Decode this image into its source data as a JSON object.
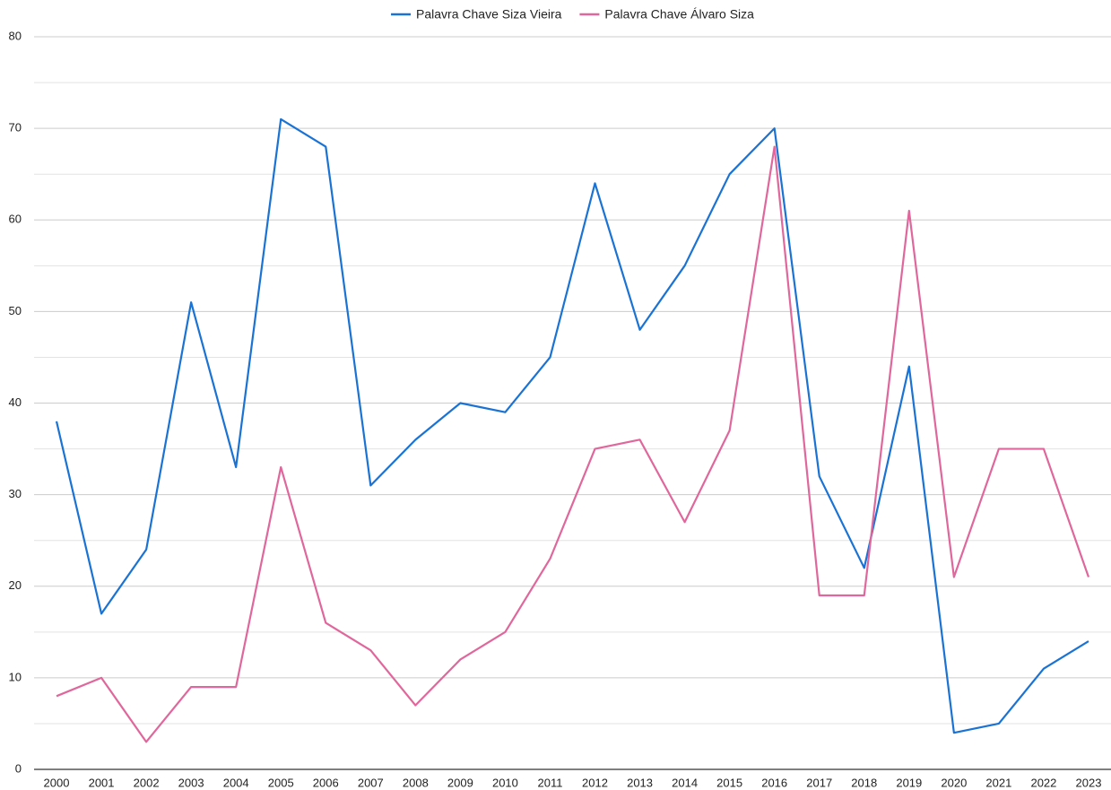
{
  "chart_data": {
    "type": "line",
    "categories": [
      "2000",
      "2001",
      "2002",
      "2003",
      "2004",
      "2005",
      "2006",
      "2007",
      "2008",
      "2009",
      "2010",
      "2011",
      "2012",
      "2013",
      "2014",
      "2015",
      "2016",
      "2017",
      "2018",
      "2019",
      "2020",
      "2021",
      "2022",
      "2023"
    ],
    "series": [
      {
        "name": "Palavra Chave Siza Vieira",
        "color": "#1a73d4",
        "values": [
          38,
          17,
          24,
          51,
          33,
          71,
          68,
          31,
          36,
          40,
          39,
          45,
          64,
          48,
          55,
          65,
          70,
          32,
          22,
          44,
          4,
          5,
          11,
          14
        ]
      },
      {
        "name": "Palavra Chave Álvaro Siza",
        "color": "#e0679b",
        "values": [
          8,
          10,
          3,
          9,
          9,
          33,
          16,
          13,
          7,
          12,
          15,
          23,
          35,
          36,
          27,
          37,
          68,
          19,
          19,
          61,
          21,
          35,
          35,
          21
        ]
      }
    ],
    "ylim": [
      0,
      80
    ],
    "yticks": [
      0,
      10,
      20,
      30,
      40,
      50,
      60,
      70,
      80
    ],
    "yminorticks": [
      5,
      15,
      25,
      35,
      45,
      55,
      65,
      75
    ],
    "grid": true,
    "legend": "top"
  }
}
